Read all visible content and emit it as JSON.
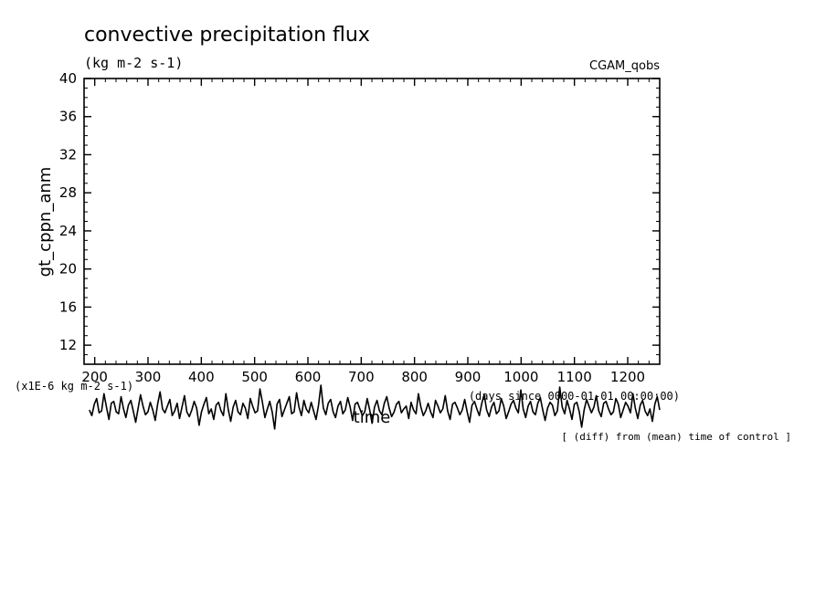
{
  "chart_data": {
    "type": "line",
    "title": "convective precipitation flux",
    "units": "(kg m-2 s-1)",
    "run_label": "CGAM_qobs",
    "ylabel": "gt_cppn_anm",
    "xlabel": "time",
    "x_units": "(days since 0000-01-01 00:00:00)",
    "y_scale_note": "(x1E-6 kg m-2 s-1)",
    "series_note": "[ (diff) from (mean) time of control ]",
    "xlim": [
      180,
      1260
    ],
    "ylim": [
      10,
      40
    ],
    "x_ticks": [
      200,
      300,
      400,
      500,
      600,
      700,
      800,
      900,
      1000,
      1100,
      1200
    ],
    "y_ticks": [
      12,
      16,
      20,
      24,
      28,
      32,
      36,
      40
    ],
    "grid": false,
    "series": [
      {
        "values": [
          5.2,
          4.6,
          5.8,
          6.4,
          4.9,
          5.1,
          6.9,
          5.5,
          4.2,
          5.9,
          6.1,
          5.0,
          4.8,
          6.6,
          5.3,
          4.4,
          5.7,
          6.2,
          5.1,
          3.9,
          5.4,
          6.8,
          5.6,
          4.7,
          5.0,
          6.0,
          5.2,
          4.1,
          5.8,
          7.1,
          5.3,
          4.9,
          5.6,
          6.3,
          4.6,
          5.1,
          5.9,
          4.3,
          5.5,
          6.7,
          5.0,
          4.5,
          5.2,
          6.1,
          5.4,
          3.6,
          5.0,
          5.8,
          6.5,
          4.8,
          5.3,
          4.2,
          5.7,
          6.0,
          5.1,
          4.6,
          6.9,
          5.2,
          4.0,
          5.5,
          6.2,
          5.0,
          4.7,
          5.9,
          5.4,
          4.3,
          6.4,
          5.6,
          4.9,
          5.1,
          7.4,
          6.0,
          4.4,
          5.3,
          6.1,
          5.0,
          3.2,
          5.8,
          6.3,
          4.5,
          5.2,
          5.9,
          6.6,
          4.8,
          5.0,
          7.0,
          5.5,
          4.6,
          6.2,
          5.3,
          4.9,
          6.0,
          5.1,
          4.2,
          5.7,
          7.8,
          5.4,
          4.7,
          5.9,
          6.3,
          5.0,
          4.4,
          5.6,
          6.1,
          4.8,
          5.2,
          6.5,
          5.5,
          4.1,
          5.8,
          6.0,
          5.3,
          4.6,
          5.0,
          6.4,
          5.2,
          3.8,
          5.5,
          6.2,
          5.1,
          4.7,
          5.9,
          6.6,
          5.4,
          4.5,
          5.0,
          5.8,
          6.1,
          4.9,
          5.3,
          5.6,
          4.3,
          6.0,
          5.2,
          4.8,
          6.9,
          5.5,
          4.6,
          5.1,
          5.9,
          5.0,
          4.4,
          6.2,
          5.6,
          4.9,
          5.3,
          6.7,
          5.1,
          4.2,
          5.8,
          6.0,
          5.4,
          4.7,
          5.2,
          6.3,
          5.0,
          3.9,
          5.7,
          6.1,
          5.3,
          4.6,
          5.9,
          6.8,
          5.2,
          4.5,
          5.5,
          6.0,
          4.8,
          5.1,
          6.4,
          5.6,
          4.3,
          5.0,
          5.8,
          6.2,
          5.4,
          4.9,
          7.3,
          5.3,
          4.4,
          5.6,
          6.1,
          5.0,
          4.7,
          5.9,
          6.5,
          5.2,
          4.1,
          5.4,
          6.0,
          5.7,
          4.6,
          5.1,
          7.6,
          5.5,
          4.8,
          6.2,
          5.3,
          4.2,
          5.8,
          6.0,
          5.0,
          3.4,
          5.2,
          6.3,
          5.6,
          4.9,
          5.5,
          6.7,
          5.1,
          4.5,
          5.9,
          6.1,
          5.3,
          4.7,
          5.0,
          6.4,
          5.8,
          4.4,
          5.2,
          6.0,
          5.6,
          4.9,
          6.9,
          5.4,
          4.3,
          5.7,
          6.2,
          5.1,
          4.6,
          5.3,
          4.0,
          5.8,
          6.6,
          5.2
        ]
      }
    ]
  }
}
